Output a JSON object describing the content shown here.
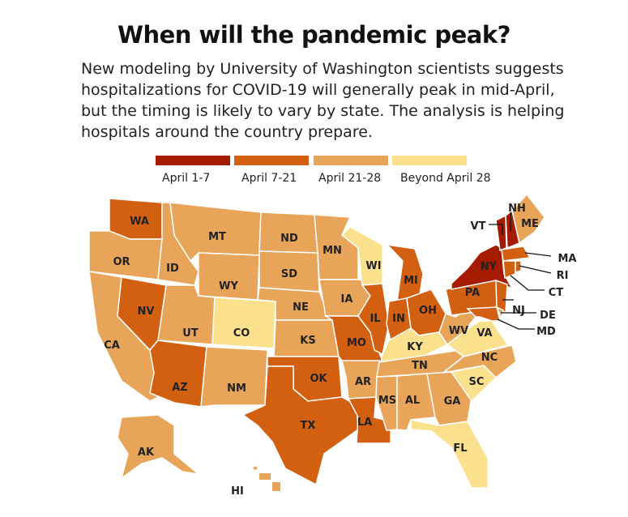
{
  "title": "When will the pandemic peak?",
  "subtitle_lines": [
    "New modeling by University of Washington scientists suggests",
    "hospitalizations for COVID-19 will generally peak in mid-April,",
    "but the timing is likely to vary by state. The analysis is helping",
    "hospitals around the country prepare."
  ],
  "legend": [
    {
      "label": "April 1-7",
      "color": "#a51b00"
    },
    {
      "label": "April 7-21",
      "color": "#d35f10"
    },
    {
      "label": "April 21-28",
      "color": "#e8a458"
    },
    {
      "label": "Beyond April 28",
      "color": "#fbe08d"
    }
  ],
  "states": [
    {
      "abbr": "WA",
      "cat": 1
    },
    {
      "abbr": "OR",
      "cat": 2
    },
    {
      "abbr": "CA",
      "cat": 2
    },
    {
      "abbr": "NV",
      "cat": 1
    },
    {
      "abbr": "ID",
      "cat": 2
    },
    {
      "abbr": "MT",
      "cat": 2
    },
    {
      "abbr": "WY",
      "cat": 2
    },
    {
      "abbr": "UT",
      "cat": 2
    },
    {
      "abbr": "CO",
      "cat": 3
    },
    {
      "abbr": "AZ",
      "cat": 1
    },
    {
      "abbr": "NM",
      "cat": 2
    },
    {
      "abbr": "ND",
      "cat": 2
    },
    {
      "abbr": "SD",
      "cat": 2
    },
    {
      "abbr": "NE",
      "cat": 2
    },
    {
      "abbr": "KS",
      "cat": 2
    },
    {
      "abbr": "OK",
      "cat": 1
    },
    {
      "abbr": "TX",
      "cat": 1
    },
    {
      "abbr": "MN",
      "cat": 2
    },
    {
      "abbr": "IA",
      "cat": 2
    },
    {
      "abbr": "MO",
      "cat": 1
    },
    {
      "abbr": "AR",
      "cat": 2
    },
    {
      "abbr": "LA",
      "cat": 1
    },
    {
      "abbr": "WI",
      "cat": 3
    },
    {
      "abbr": "IL",
      "cat": 1
    },
    {
      "abbr": "MI",
      "cat": 1
    },
    {
      "abbr": "IN",
      "cat": 1
    },
    {
      "abbr": "OH",
      "cat": 1
    },
    {
      "abbr": "KY",
      "cat": 3
    },
    {
      "abbr": "TN",
      "cat": 2
    },
    {
      "abbr": "MS",
      "cat": 2
    },
    {
      "abbr": "AL",
      "cat": 2
    },
    {
      "abbr": "GA",
      "cat": 2
    },
    {
      "abbr": "FL",
      "cat": 3
    },
    {
      "abbr": "SC",
      "cat": 3
    },
    {
      "abbr": "NC",
      "cat": 2
    },
    {
      "abbr": "VA",
      "cat": 3
    },
    {
      "abbr": "WV",
      "cat": 2
    },
    {
      "abbr": "PA",
      "cat": 1
    },
    {
      "abbr": "NY",
      "cat": 0
    },
    {
      "abbr": "VT",
      "cat": 0
    },
    {
      "abbr": "NH",
      "cat": 0
    },
    {
      "abbr": "ME",
      "cat": 2
    },
    {
      "abbr": "MA",
      "cat": 1
    },
    {
      "abbr": "CT",
      "cat": 1
    },
    {
      "abbr": "RI",
      "cat": 1
    },
    {
      "abbr": "NJ",
      "cat": 1
    },
    {
      "abbr": "DE",
      "cat": 2
    },
    {
      "abbr": "MD",
      "cat": 1
    },
    {
      "abbr": "AK",
      "cat": 2
    },
    {
      "abbr": "HI",
      "cat": 2
    }
  ]
}
